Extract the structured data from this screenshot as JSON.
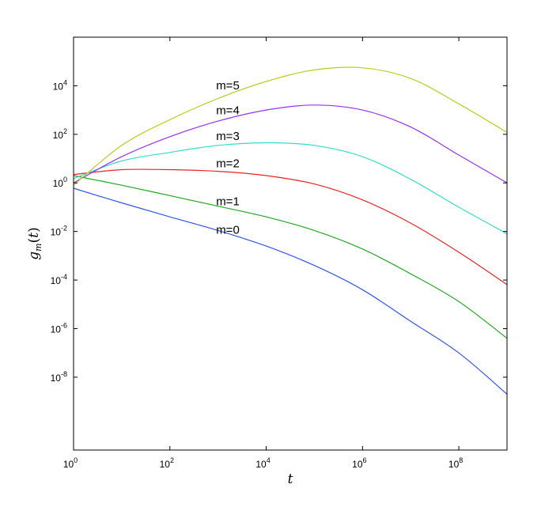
{
  "chart_data": {
    "type": "line",
    "title": "",
    "xlabel": "t",
    "ylabel": "g_m(t)",
    "xscale": "log",
    "yscale": "log",
    "xlim": [
      1,
      1000000000
    ],
    "ylim": [
      1e-11,
      1000000
    ],
    "grid": false,
    "legend": "none",
    "x_ticks": [
      {
        "base": "10",
        "exp": "0",
        "value": 1
      },
      {
        "base": "10",
        "exp": "2",
        "value": 100
      },
      {
        "base": "10",
        "exp": "4",
        "value": 10000
      },
      {
        "base": "10",
        "exp": "6",
        "value": 1000000
      },
      {
        "base": "10",
        "exp": "8",
        "value": 100000000
      }
    ],
    "y_ticks": [
      {
        "base": "10",
        "exp": "-8",
        "value": 1e-08
      },
      {
        "base": "10",
        "exp": "-6",
        "value": 1e-06
      },
      {
        "base": "10",
        "exp": "-4",
        "value": 0.0001
      },
      {
        "base": "10",
        "exp": "-2",
        "value": 0.01
      },
      {
        "base": "10",
        "exp": "0",
        "value": 1
      },
      {
        "base": "10",
        "exp": "2",
        "value": 100
      },
      {
        "base": "10",
        "exp": "4",
        "value": 10000
      }
    ],
    "x": [
      1,
      10,
      100,
      1000,
      10000,
      100000,
      1000000,
      10000000,
      100000000,
      1000000000
    ],
    "series": [
      {
        "name": "m=0",
        "color": "#3355ee",
        "values": [
          0.6,
          0.15,
          0.04,
          0.011,
          0.0025,
          0.0004,
          4e-05,
          2e-06,
          1e-07,
          2e-09
        ]
      },
      {
        "name": "m=1",
        "color": "#22aa22",
        "values": [
          2,
          0.8,
          0.3,
          0.11,
          0.04,
          0.011,
          0.0019,
          0.00018,
          1.3e-05,
          4e-07
        ]
      },
      {
        "name": "m=2",
        "color": "#ee2222",
        "values": [
          2.2,
          3.5,
          3.5,
          3.0,
          2.0,
          0.9,
          0.2,
          0.022,
          0.0014,
          6.5e-05
        ]
      },
      {
        "name": "m=3",
        "color": "#33ddcc",
        "values": [
          1.5,
          8,
          18,
          35,
          45,
          35,
          12,
          1.4,
          0.1,
          0.008
        ]
      },
      {
        "name": "m=4",
        "color": "#9933ee",
        "values": [
          1.0,
          12,
          80,
          350,
          1000,
          1600,
          1000,
          200,
          14,
          1.0
        ]
      },
      {
        "name": "m=5",
        "color": "#bbcc22",
        "values": [
          0.8,
          35,
          400,
          3000,
          15000,
          45000,
          55000,
          20000,
          1800,
          120
        ]
      }
    ]
  }
}
